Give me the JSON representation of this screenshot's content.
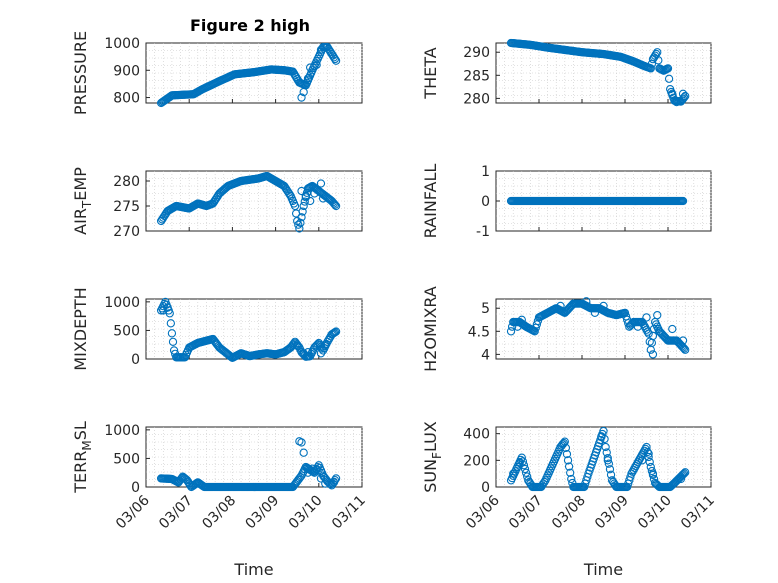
{
  "figure_title": "Figure 2 high",
  "chart_data": [
    {
      "type": "scatter",
      "title": "Figure 2 high",
      "xlabel": "",
      "ylabel": "PRESSURE",
      "xlim": [
        6.0,
        11.0
      ],
      "ylim": [
        780,
        1000
      ],
      "yticks": [
        800,
        900,
        1000
      ],
      "yticklabels": [
        "800",
        "900",
        "1000"
      ],
      "series": [
        {
          "keys": [
            [
              6.35,
              780
            ],
            [
              6.6,
              808
            ],
            [
              7.1,
              812
            ],
            [
              7.3,
              830
            ],
            [
              7.7,
              860
            ],
            [
              8.05,
              885
            ],
            [
              8.5,
              893
            ],
            [
              8.9,
              903
            ],
            [
              9.2,
              900
            ],
            [
              9.4,
              895
            ],
            [
              9.55,
              855
            ],
            [
              9.7,
              845
            ],
            [
              9.85,
              900
            ],
            [
              10.0,
              950
            ],
            [
              10.1,
              985
            ],
            [
              10.2,
              985
            ],
            [
              10.3,
              960
            ],
            [
              10.4,
              935
            ]
          ],
          "extra": [
            [
              9.6,
              800
            ],
            [
              9.65,
              820
            ],
            [
              9.75,
              870
            ],
            [
              9.8,
              910
            ],
            [
              9.9,
              915
            ],
            [
              9.95,
              920
            ],
            [
              10.05,
              975
            ]
          ]
        }
      ]
    },
    {
      "type": "scatter",
      "xlabel": "",
      "ylabel": "THETA",
      "xlim": [
        6.0,
        11.0
      ],
      "ylim": [
        279,
        292
      ],
      "yticks": [
        280,
        285,
        290
      ],
      "yticklabels": [
        "280",
        "285",
        "290"
      ],
      "series": [
        {
          "keys": [
            [
              6.35,
              292
            ],
            [
              6.8,
              291.6
            ],
            [
              7.2,
              291
            ],
            [
              7.6,
              290.5
            ],
            [
              8.0,
              290
            ],
            [
              8.5,
              289.6
            ],
            [
              8.9,
              289
            ],
            [
              9.2,
              288
            ],
            [
              9.45,
              287
            ],
            [
              9.6,
              286.5
            ],
            [
              9.65,
              288.5
            ],
            [
              9.75,
              290
            ],
            [
              9.8,
              286.5
            ],
            [
              9.9,
              286
            ],
            [
              10.0,
              286.5
            ],
            [
              10.05,
              282
            ],
            [
              10.15,
              279.5
            ],
            [
              10.3,
              279.3
            ],
            [
              10.4,
              280.5
            ]
          ],
          "extra": [
            [
              10.1,
              281
            ],
            [
              10.2,
              279.2
            ],
            [
              10.35,
              281
            ]
          ]
        }
      ]
    },
    {
      "type": "scatter",
      "xlabel": "",
      "ylabel": "AIR_TEMP",
      "xlim": [
        6.0,
        11.0
      ],
      "ylim": [
        270,
        282
      ],
      "yticks": [
        270,
        275,
        280
      ],
      "yticklabels": [
        "270",
        "275",
        "280"
      ],
      "series": [
        {
          "keys": [
            [
              6.35,
              272
            ],
            [
              6.5,
              274
            ],
            [
              6.7,
              275
            ],
            [
              7.0,
              274.5
            ],
            [
              7.2,
              275.5
            ],
            [
              7.4,
              275
            ],
            [
              7.55,
              275.5
            ],
            [
              7.7,
              277.5
            ],
            [
              7.9,
              279
            ],
            [
              8.2,
              280
            ],
            [
              8.6,
              280.5
            ],
            [
              8.8,
              281
            ],
            [
              9.0,
              280
            ],
            [
              9.2,
              279
            ],
            [
              9.35,
              277
            ],
            [
              9.45,
              275
            ],
            [
              9.5,
              272
            ],
            [
              9.55,
              270.5
            ],
            [
              9.65,
              275
            ],
            [
              9.75,
              278.5
            ],
            [
              9.85,
              279
            ],
            [
              10.0,
              278
            ],
            [
              10.15,
              277
            ],
            [
              10.3,
              276
            ],
            [
              10.4,
              275
            ]
          ],
          "extra": [
            [
              9.6,
              278
            ],
            [
              9.7,
              277
            ],
            [
              9.8,
              276
            ],
            [
              9.9,
              277.5
            ],
            [
              10.05,
              279.5
            ],
            [
              10.1,
              276.5
            ]
          ]
        }
      ]
    },
    {
      "type": "scatter",
      "xlabel": "",
      "ylabel": "RAINFALL",
      "xlim": [
        6.0,
        11.0
      ],
      "ylim": [
        -1,
        1
      ],
      "yticks": [
        -1,
        0,
        1
      ],
      "yticklabels": [
        "-1",
        "0",
        "1"
      ],
      "series": [
        {
          "keys": [
            [
              6.35,
              0
            ],
            [
              10.35,
              0
            ]
          ],
          "extra": []
        }
      ]
    },
    {
      "type": "scatter",
      "xlabel": "",
      "ylabel": "MIXDEPTH",
      "xlim": [
        6.0,
        11.0
      ],
      "ylim": [
        0,
        1050
      ],
      "yticks": [
        0,
        500,
        1000
      ],
      "yticklabels": [
        "0",
        "500",
        "1000"
      ],
      "series": [
        {
          "keys": [
            [
              6.35,
              850
            ],
            [
              6.45,
              1000
            ],
            [
              6.55,
              800
            ],
            [
              6.6,
              450
            ],
            [
              6.65,
              150
            ],
            [
              6.7,
              30
            ],
            [
              6.9,
              30
            ],
            [
              7.0,
              200
            ],
            [
              7.2,
              280
            ],
            [
              7.4,
              320
            ],
            [
              7.55,
              350
            ],
            [
              7.7,
              200
            ],
            [
              7.9,
              80
            ],
            [
              8.0,
              20
            ],
            [
              8.2,
              100
            ],
            [
              8.4,
              50
            ],
            [
              8.6,
              80
            ],
            [
              8.8,
              100
            ],
            [
              9.0,
              80
            ],
            [
              9.2,
              120
            ],
            [
              9.35,
              200
            ],
            [
              9.45,
              300
            ],
            [
              9.55,
              200
            ],
            [
              9.6,
              120
            ],
            [
              9.7,
              40
            ],
            [
              9.8,
              50
            ],
            [
              9.9,
              200
            ],
            [
              10.0,
              280
            ],
            [
              10.1,
              150
            ],
            [
              10.2,
              300
            ],
            [
              10.3,
              430
            ],
            [
              10.4,
              480
            ]
          ],
          "extra": [
            [
              6.4,
              850
            ],
            [
              6.5,
              900
            ],
            [
              9.5,
              230
            ],
            [
              9.65,
              100
            ],
            [
              9.75,
              120
            ],
            [
              10.05,
              100
            ],
            [
              10.15,
              250
            ]
          ]
        }
      ]
    },
    {
      "type": "scatter",
      "xlabel": "",
      "ylabel": "H2OMIXRA",
      "xlim": [
        6.0,
        11.0
      ],
      "ylim": [
        3.9,
        5.2
      ],
      "yticks": [
        4,
        4.5,
        5
      ],
      "yticklabels": [
        "4",
        "4.5",
        "5"
      ],
      "series": [
        {
          "keys": [
            [
              6.35,
              4.5
            ],
            [
              6.4,
              4.7
            ],
            [
              6.55,
              4.7
            ],
            [
              6.7,
              4.6
            ],
            [
              6.9,
              4.5
            ],
            [
              7.0,
              4.8
            ],
            [
              7.2,
              4.9
            ],
            [
              7.4,
              5.0
            ],
            [
              7.6,
              4.9
            ],
            [
              7.8,
              5.1
            ],
            [
              8.0,
              5.1
            ],
            [
              8.2,
              5.0
            ],
            [
              8.4,
              5.0
            ],
            [
              8.6,
              4.9
            ],
            [
              8.8,
              4.85
            ],
            [
              9.0,
              4.9
            ],
            [
              9.1,
              4.6
            ],
            [
              9.2,
              4.7
            ],
            [
              9.4,
              4.7
            ],
            [
              9.55,
              4.45
            ],
            [
              9.6,
              4.1
            ],
            [
              9.7,
              4.7
            ],
            [
              9.8,
              4.5
            ],
            [
              9.9,
              4.4
            ],
            [
              10.0,
              4.3
            ],
            [
              10.2,
              4.3
            ],
            [
              10.3,
              4.2
            ],
            [
              10.4,
              4.1
            ]
          ],
          "extra": [
            [
              6.5,
              4.6
            ],
            [
              6.6,
              4.75
            ],
            [
              7.5,
              5.05
            ],
            [
              8.1,
              5.15
            ],
            [
              8.3,
              4.9
            ],
            [
              8.5,
              5.05
            ],
            [
              9.3,
              4.6
            ],
            [
              9.5,
              4.8
            ],
            [
              9.65,
              4.0
            ],
            [
              9.75,
              4.85
            ],
            [
              10.1,
              4.55
            ],
            [
              10.35,
              4.3
            ]
          ]
        }
      ]
    },
    {
      "type": "scatter",
      "xlabel": "Time",
      "ylabel": "TERR_MSL",
      "xlim": [
        6.0,
        11.0
      ],
      "ylim": [
        0,
        1050
      ],
      "yticks": [
        0,
        500,
        1000
      ],
      "yticklabels": [
        "0",
        "500",
        "1000"
      ],
      "xticks": [
        6,
        7,
        8,
        9,
        10,
        11
      ],
      "xticklabels": [
        "03/06",
        "03/07",
        "03/08",
        "03/09",
        "03/10",
        "03/11"
      ],
      "series": [
        {
          "keys": [
            [
              6.35,
              150
            ],
            [
              6.6,
              140
            ],
            [
              6.75,
              80
            ],
            [
              6.85,
              180
            ],
            [
              6.95,
              120
            ],
            [
              7.05,
              0
            ],
            [
              7.2,
              80
            ],
            [
              7.35,
              0
            ],
            [
              8.0,
              0
            ],
            [
              9.0,
              0
            ],
            [
              9.4,
              0
            ],
            [
              9.5,
              100
            ],
            [
              9.6,
              200
            ],
            [
              9.7,
              350
            ],
            [
              9.8,
              300
            ],
            [
              9.9,
              250
            ],
            [
              10.0,
              380
            ],
            [
              10.1,
              200
            ],
            [
              10.2,
              100
            ],
            [
              10.3,
              30
            ],
            [
              10.4,
              150
            ]
          ],
          "extra": [
            [
              9.55,
              800
            ],
            [
              9.6,
              780
            ],
            [
              9.65,
              600
            ],
            [
              9.75,
              250
            ],
            [
              9.85,
              320
            ],
            [
              9.95,
              300
            ],
            [
              10.05,
              150
            ],
            [
              10.15,
              60
            ],
            [
              10.35,
              80
            ]
          ]
        }
      ]
    },
    {
      "type": "scatter",
      "xlabel": "Time",
      "ylabel": "SUN_FLUX",
      "xlim": [
        6.0,
        11.0
      ],
      "ylim": [
        0,
        450
      ],
      "yticks": [
        0,
        200,
        400
      ],
      "yticklabels": [
        "0",
        "200",
        "400"
      ],
      "xticks": [
        6,
        7,
        8,
        9,
        10,
        11
      ],
      "xticklabels": [
        "03/06",
        "03/07",
        "03/08",
        "03/09",
        "03/10",
        "03/11"
      ],
      "series": [
        {
          "keys": [
            [
              6.35,
              50
            ],
            [
              6.6,
              220
            ],
            [
              6.75,
              50
            ],
            [
              6.85,
              0
            ],
            [
              7.05,
              0
            ],
            [
              7.15,
              50
            ],
            [
              7.5,
              300
            ],
            [
              7.6,
              340
            ],
            [
              7.75,
              60
            ],
            [
              7.8,
              0
            ],
            [
              8.05,
              0
            ],
            [
              8.15,
              100
            ],
            [
              8.5,
              420
            ],
            [
              8.55,
              300
            ],
            [
              8.7,
              50
            ],
            [
              8.8,
              0
            ],
            [
              9.05,
              0
            ],
            [
              9.15,
              100
            ],
            [
              9.5,
              300
            ],
            [
              9.6,
              150
            ],
            [
              9.7,
              30
            ],
            [
              9.8,
              0
            ],
            [
              10.05,
              0
            ],
            [
              10.15,
              30
            ],
            [
              10.4,
              110
            ]
          ],
          "extra": [
            [
              6.4,
              100
            ],
            [
              6.5,
              150
            ],
            [
              6.55,
              180
            ],
            [
              7.55,
              320
            ],
            [
              8.45,
              380
            ],
            [
              8.6,
              200
            ],
            [
              9.4,
              200
            ],
            [
              9.55,
              250
            ],
            [
              9.65,
              100
            ],
            [
              10.3,
              60
            ]
          ]
        }
      ]
    }
  ]
}
